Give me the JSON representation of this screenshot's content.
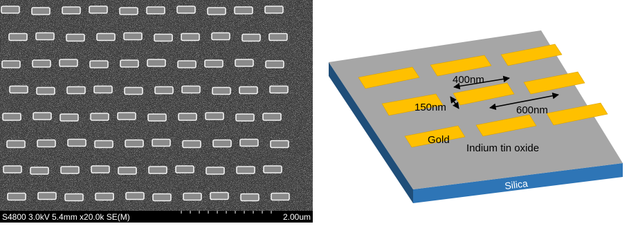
{
  "sem_image": {
    "info_bar": "S4800 3.0kV 5.4mm x20.0k SE(M)",
    "scale_label": "2.00um",
    "grid": {
      "rows": 8,
      "columns": 10
    }
  },
  "schematic": {
    "labels": {
      "length": "400nm",
      "width": "150nm",
      "spacing": "600nm",
      "particle": "Gold",
      "layer": "Indium tin oxide",
      "substrate": "Silica"
    },
    "colors": {
      "gold": "#ffc000",
      "gold_edge": "#d9a200",
      "top_surface": "#a6a6a6",
      "front_face": "#2e75b6",
      "side_face": "#1f4e79",
      "arrow": "#000000"
    }
  }
}
